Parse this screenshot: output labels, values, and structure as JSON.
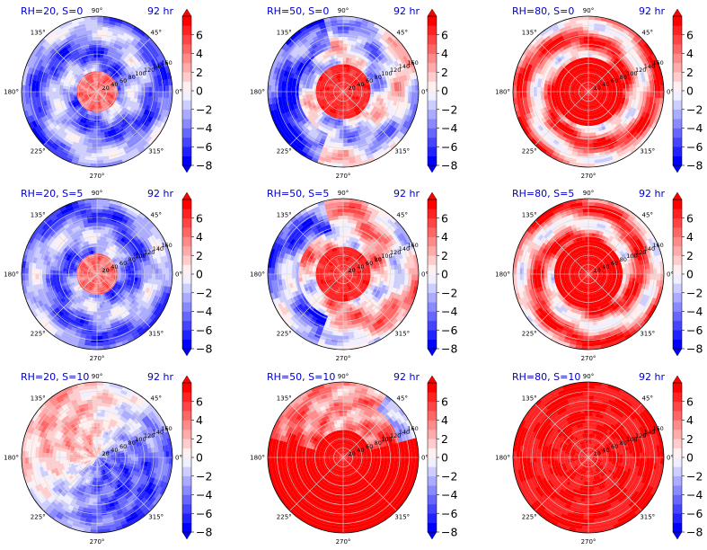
{
  "chart_data": {
    "type": "polar-contour",
    "grid": true,
    "layout": "3x3",
    "colormap": "bwr",
    "colorbar": {
      "ticks": [
        "6",
        "4",
        "2",
        "0",
        "−2",
        "−4",
        "−6",
        "−8"
      ],
      "levels": [
        -8,
        -7,
        -6,
        -5,
        -4,
        -3,
        -2,
        -1,
        0,
        1,
        2,
        3,
        4,
        5,
        6,
        7
      ],
      "extend": "both",
      "colors_bottom_to_top": [
        "#0000ff",
        "#2222ff",
        "#4545ff",
        "#6767ff",
        "#8a8aff",
        "#ababff",
        "#cdcdff",
        "#efefff",
        "#ffefef",
        "#ffcdcd",
        "#ffabab",
        "#ff8a8a",
        "#ff6767",
        "#ff4545",
        "#ff2222",
        "#ff0000"
      ]
    },
    "azimuth_labels": [
      "90°",
      "45°",
      "0°",
      "315°",
      "270°",
      "225°",
      "180°",
      "135°"
    ],
    "radial_ticks": [
      "20",
      "40",
      "60",
      "80",
      "100",
      "120",
      "140",
      "160"
    ],
    "panels": [
      {
        "title": "RH=20, S=0",
        "time": "92 hr",
        "pattern": "ring",
        "mean_sign": -1
      },
      {
        "title": "RH=50, S=0",
        "time": "92 hr",
        "pattern": "core",
        "mean_sign": 0
      },
      {
        "title": "RH=80, S=0",
        "time": "92 hr",
        "pattern": "warm",
        "mean_sign": 1
      },
      {
        "title": "RH=20, S=5",
        "time": "92 hr",
        "pattern": "ring",
        "mean_sign": -1
      },
      {
        "title": "RH=50, S=5",
        "time": "92 hr",
        "pattern": "core",
        "mean_sign": 1
      },
      {
        "title": "RH=80, S=5",
        "time": "92 hr",
        "pattern": "warm",
        "mean_sign": 1
      },
      {
        "title": "RH=20, S=10",
        "time": "92 hr",
        "pattern": "split",
        "mean_sign": -1
      },
      {
        "title": "RH=50, S=10",
        "time": "92 hr",
        "pattern": "south",
        "mean_sign": 1
      },
      {
        "title": "RH=80, S=10",
        "time": "92 hr",
        "pattern": "solid",
        "mean_sign": 1
      }
    ]
  }
}
